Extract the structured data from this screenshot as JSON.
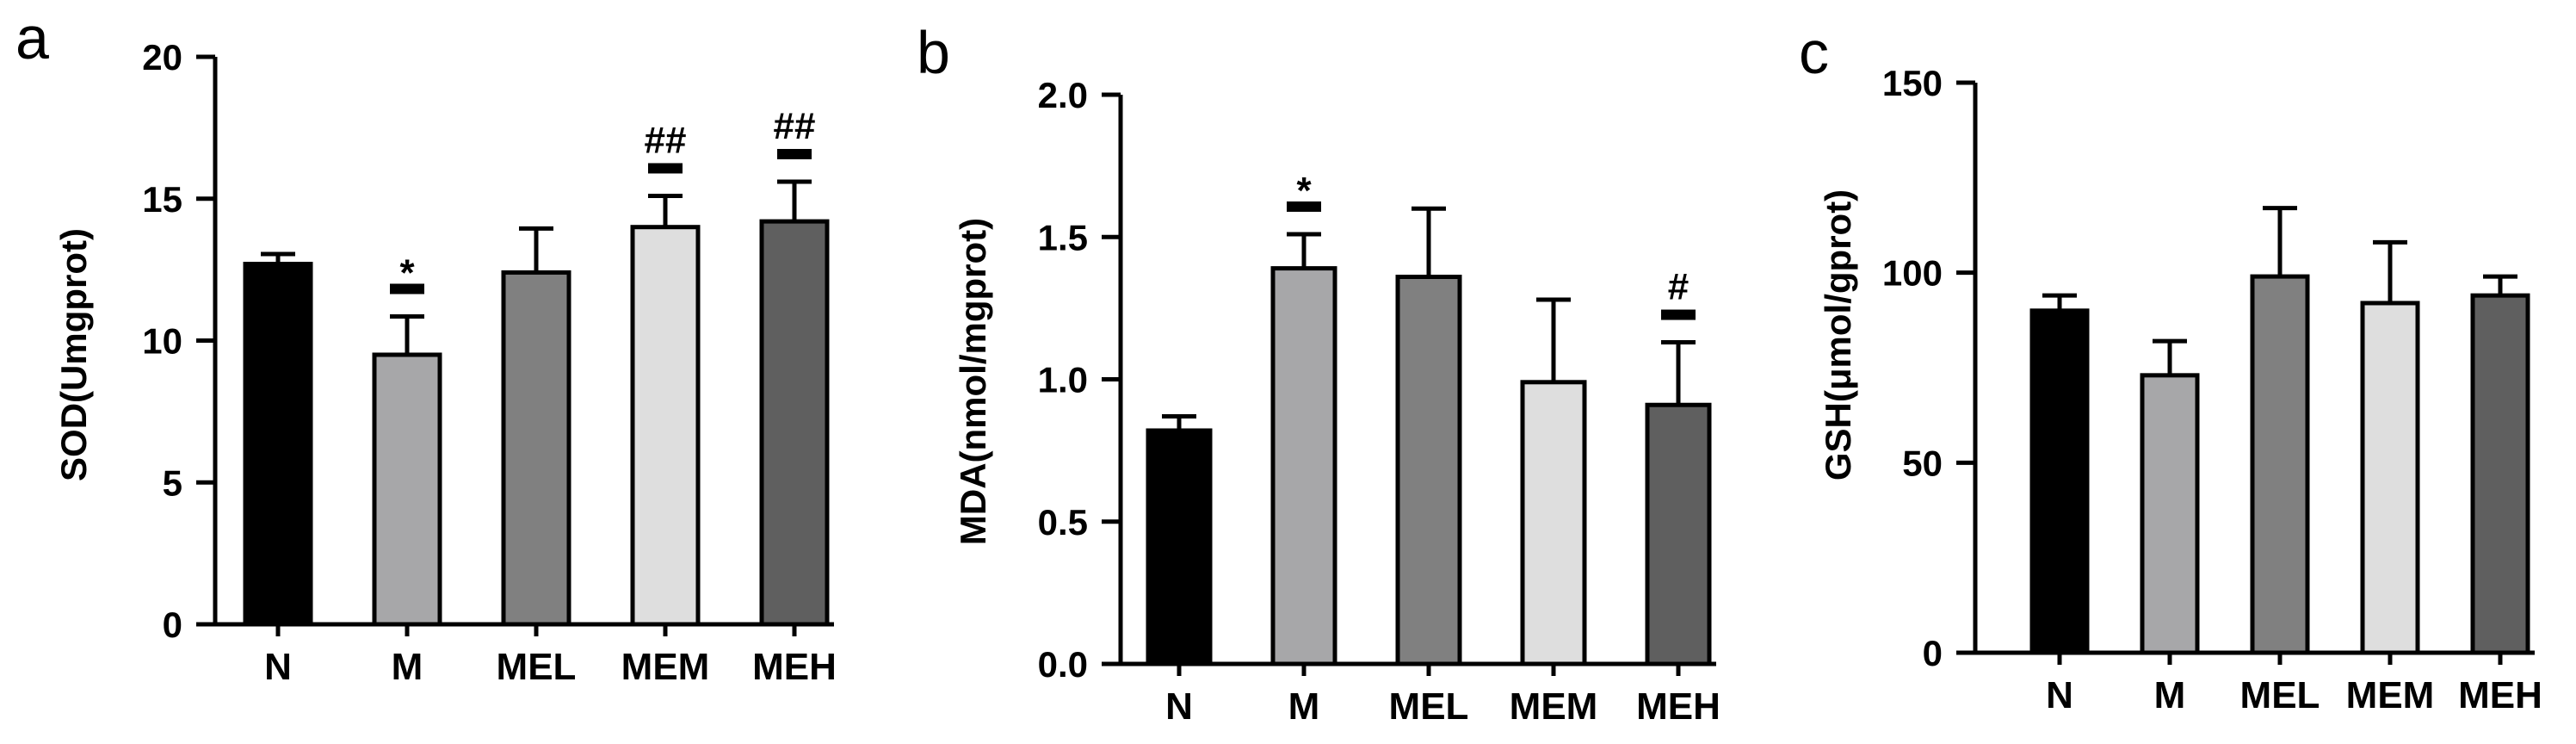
{
  "chart_data": [
    {
      "panel": "a",
      "type": "bar",
      "categories": [
        "N",
        "M",
        "MEL",
        "MEM",
        "MEH"
      ],
      "values": [
        12.7,
        9.5,
        12.4,
        14.0,
        14.2
      ],
      "errors": [
        0.35,
        1.35,
        1.55,
        1.1,
        1.4
      ],
      "colors": [
        "#000000",
        "#a7a7a9",
        "#808080",
        "#dedede",
        "#5f5f5f"
      ],
      "significance": [
        "",
        "*",
        "",
        "##",
        "##"
      ],
      "sig_bar": [
        false,
        true,
        false,
        true,
        true
      ],
      "ylabel": "SOD(Umgprot)",
      "ylim": [
        0,
        20
      ],
      "yticks": [
        "0",
        "5",
        "10",
        "15",
        "20"
      ],
      "grid": false
    },
    {
      "panel": "b",
      "type": "bar",
      "categories": [
        "N",
        "M",
        "MEL",
        "MEM",
        "MEH"
      ],
      "values": [
        0.82,
        1.39,
        1.36,
        0.99,
        0.91
      ],
      "errors": [
        0.05,
        0.12,
        0.24,
        0.29,
        0.22
      ],
      "colors": [
        "#000000",
        "#a7a7a9",
        "#808080",
        "#dedede",
        "#5f5f5f"
      ],
      "significance": [
        "",
        "*",
        "",
        "",
        "#"
      ],
      "sig_bar": [
        false,
        true,
        false,
        false,
        true
      ],
      "ylabel": "MDA(nmol/mgprot)",
      "ylim": [
        0,
        2.0
      ],
      "yticks": [
        "0.0",
        "0.5",
        "1.0",
        "1.5",
        "2.0"
      ],
      "grid": false
    },
    {
      "panel": "c",
      "type": "bar",
      "categories": [
        "N",
        "M",
        "MEL",
        "MEM",
        "MEH"
      ],
      "values": [
        90,
        73,
        99,
        92,
        94
      ],
      "errors": [
        4,
        9,
        18,
        16,
        5
      ],
      "colors": [
        "#000000",
        "#a7a7a9",
        "#808080",
        "#dedede",
        "#5f5f5f"
      ],
      "significance": [
        "",
        "",
        "",
        "",
        ""
      ],
      "sig_bar": [
        false,
        false,
        false,
        false,
        false
      ],
      "ylabel": "GSH(μmol/gprot)",
      "ylim": [
        0,
        150
      ],
      "yticks": [
        "0",
        "50",
        "100",
        "150"
      ],
      "grid": false
    }
  ]
}
